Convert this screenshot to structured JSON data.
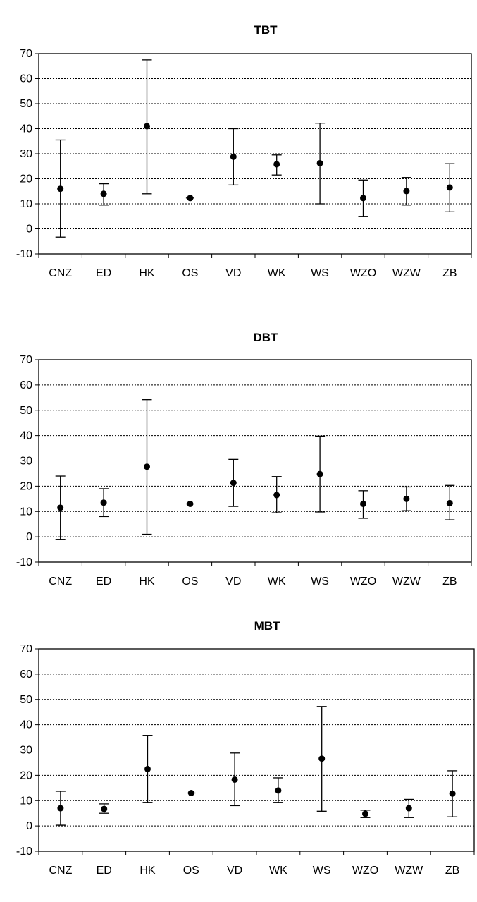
{
  "chart_data": [
    {
      "type": "scatter",
      "title": "TBT",
      "xlabel": "",
      "ylabel": "",
      "ylim": [
        -10,
        70
      ],
      "yticks": [
        -10,
        0,
        10,
        20,
        30,
        40,
        50,
        60,
        70
      ],
      "categories": [
        "CNZ",
        "ED",
        "HK",
        "OS",
        "VD",
        "WK",
        "WS",
        "WZO",
        "WZW",
        "ZB"
      ],
      "values": [
        16,
        14,
        41,
        12.3,
        28.8,
        25.8,
        26.2,
        12.3,
        15.1,
        16.5
      ],
      "error_low": [
        -3.3,
        9.5,
        14,
        12.3,
        17.5,
        21.5,
        10,
        5,
        9.5,
        6.8
      ],
      "error_high": [
        35.5,
        18,
        67.5,
        12.3,
        40,
        29.5,
        42.2,
        19.5,
        20.5,
        26
      ],
      "grid": true
    },
    {
      "type": "scatter",
      "title": "DBT",
      "xlabel": "",
      "ylabel": "",
      "ylim": [
        -10,
        70
      ],
      "yticks": [
        -10,
        0,
        10,
        20,
        30,
        40,
        50,
        60,
        70
      ],
      "categories": [
        "CNZ",
        "ED",
        "HK",
        "OS",
        "VD",
        "WK",
        "WS",
        "WZO",
        "WZW",
        "ZB"
      ],
      "values": [
        11.5,
        13.5,
        27.7,
        13,
        21.3,
        16.5,
        24.8,
        13,
        15,
        13.3
      ],
      "error_low": [
        -1,
        8,
        1,
        13,
        12,
        9.5,
        9.8,
        7.3,
        10.3,
        6.7
      ],
      "error_high": [
        24,
        19,
        54.2,
        13,
        30.6,
        23.8,
        39.8,
        18.2,
        19.7,
        20.3
      ],
      "grid": true
    },
    {
      "type": "scatter",
      "title": "MBT",
      "xlabel": "",
      "ylabel": "",
      "ylim": [
        -10,
        70
      ],
      "yticks": [
        -10,
        0,
        10,
        20,
        30,
        40,
        50,
        60,
        70
      ],
      "categories": [
        "CNZ",
        "ED",
        "HK",
        "OS",
        "VD",
        "WK",
        "WS",
        "WZO",
        "WZW",
        "ZB"
      ],
      "values": [
        7,
        6.7,
        22.5,
        13,
        18.3,
        14,
        26.6,
        4.8,
        7,
        12.8
      ],
      "error_low": [
        0.3,
        5,
        9.3,
        13,
        8,
        9.3,
        5.8,
        3.3,
        3.3,
        3.6
      ],
      "error_high": [
        13.7,
        8.7,
        35.8,
        13,
        28.8,
        19,
        47.2,
        6.2,
        10.5,
        21.8
      ],
      "grid": true
    }
  ],
  "colors": {
    "marker": "#000000",
    "grid": "#000000",
    "background": "#ffffff"
  }
}
